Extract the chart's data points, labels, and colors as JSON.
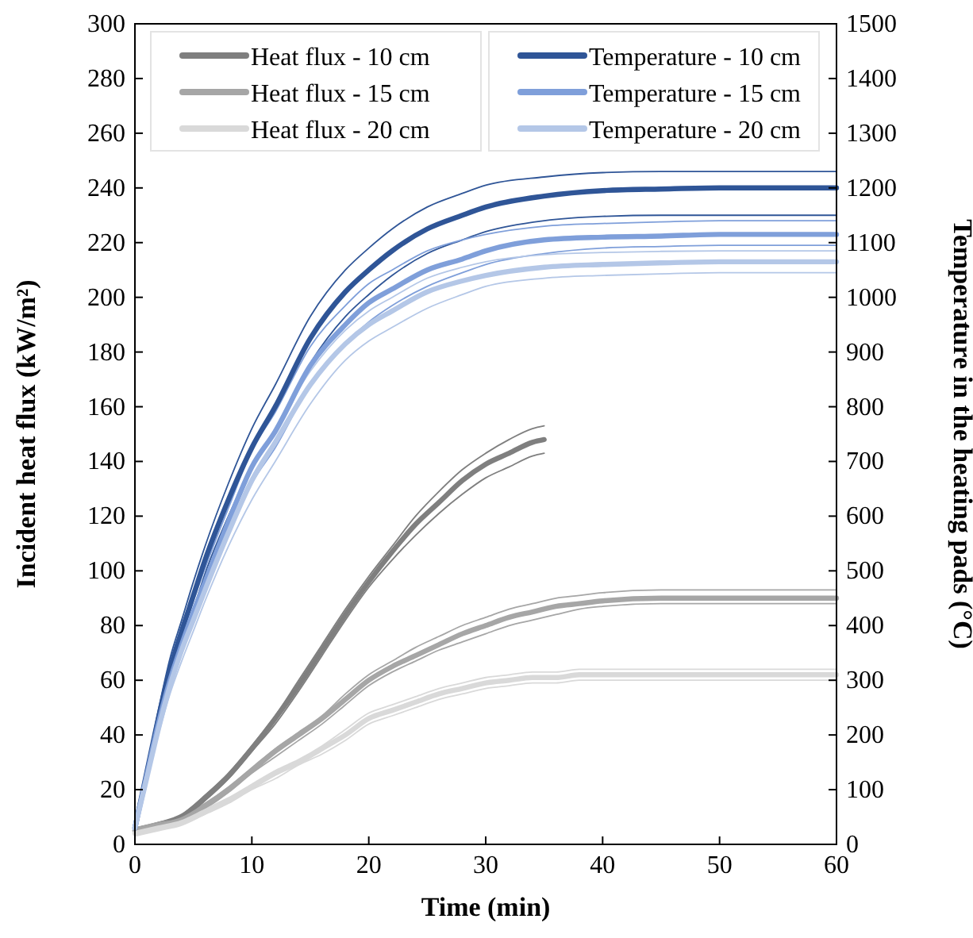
{
  "chart_data": {
    "type": "line",
    "xlabel": "Time (min)",
    "ylabel": "Incident heat flux (kW/m²)",
    "y2label": "Temperature in the heating pads (°C)",
    "xlim": [
      0,
      60
    ],
    "xticks": [
      0,
      10,
      20,
      30,
      40,
      50,
      60
    ],
    "ylim": [
      0,
      300
    ],
    "yticks": [
      0,
      20,
      40,
      60,
      80,
      100,
      120,
      140,
      160,
      180,
      200,
      220,
      240,
      260,
      280,
      300
    ],
    "y2lim": [
      0,
      1500
    ],
    "y2ticks": [
      0,
      100,
      200,
      300,
      400,
      500,
      600,
      700,
      800,
      900,
      1000,
      1100,
      1200,
      1300,
      1400,
      1500
    ],
    "grid": false,
    "legend": "top",
    "marker": "none",
    "line_style": "solid",
    "series": [
      {
        "name": "Heat flux - 10 cm",
        "color": "#7f7f7f",
        "x": [
          0,
          2,
          4,
          6,
          8,
          10,
          12,
          14,
          16,
          18,
          20,
          22,
          24,
          26,
          28,
          30,
          32,
          34,
          35
        ],
        "values": [
          5,
          7,
          10,
          17,
          25,
          35,
          46,
          58,
          71,
          84,
          96,
          107,
          117,
          125,
          133,
          139,
          143,
          147,
          148
        ]
      },
      {
        "color": "#7f7f7f",
        "x": [
          0,
          2,
          4,
          6,
          8,
          10,
          12,
          14,
          16,
          18,
          20,
          22,
          24,
          26,
          28,
          30,
          32,
          34,
          35
        ],
        "values": [
          4,
          6,
          9,
          16,
          24,
          34,
          44,
          56,
          69,
          82,
          94,
          104,
          113,
          121,
          128,
          134,
          138,
          142,
          143
        ]
      },
      {
        "color": "#7f7f7f",
        "x": [
          0,
          2,
          4,
          6,
          8,
          10,
          12,
          14,
          16,
          18,
          20,
          22,
          24,
          26,
          28,
          30,
          32,
          34,
          35
        ],
        "values": [
          6,
          8,
          11,
          18,
          26,
          36,
          47,
          60,
          73,
          86,
          98,
          109,
          120,
          129,
          137,
          143,
          148,
          152,
          153
        ]
      },
      {
        "name": "Heat flux - 15 cm",
        "color": "#a6a6a6",
        "x": [
          0,
          2,
          4,
          6,
          8,
          10,
          12,
          14,
          16,
          18,
          20,
          22,
          24,
          26,
          28,
          30,
          32,
          34,
          36,
          38,
          40,
          45,
          50,
          55,
          60
        ],
        "values": [
          5,
          7,
          9,
          14,
          20,
          27,
          34,
          40,
          46,
          53,
          60,
          65,
          69,
          73,
          77,
          80,
          83,
          85,
          87,
          88,
          89,
          90,
          90,
          90,
          90
        ]
      },
      {
        "color": "#a6a6a6",
        "x": [
          0,
          2,
          4,
          6,
          8,
          10,
          12,
          14,
          16,
          18,
          20,
          22,
          24,
          26,
          28,
          30,
          32,
          34,
          36,
          38,
          40,
          45,
          50,
          55,
          60
        ],
        "values": [
          4,
          6,
          8,
          13,
          19,
          26,
          32,
          38,
          44,
          51,
          58,
          63,
          67,
          71,
          74,
          77,
          80,
          82,
          84,
          86,
          87,
          88,
          88,
          88,
          88
        ]
      },
      {
        "color": "#a6a6a6",
        "x": [
          0,
          2,
          4,
          6,
          8,
          10,
          12,
          14,
          16,
          18,
          20,
          22,
          24,
          26,
          28,
          30,
          32,
          34,
          36,
          38,
          40,
          45,
          50,
          55,
          60
        ],
        "values": [
          6,
          8,
          10,
          15,
          21,
          28,
          35,
          41,
          47,
          55,
          62,
          67,
          72,
          76,
          80,
          83,
          86,
          88,
          90,
          91,
          92,
          93,
          93,
          93,
          93
        ]
      },
      {
        "name": "Heat flux - 20 cm",
        "color": "#d9d9d9",
        "x": [
          0,
          2,
          4,
          6,
          8,
          10,
          12,
          14,
          16,
          18,
          20,
          22,
          24,
          26,
          28,
          30,
          32,
          34,
          36,
          38,
          40,
          45,
          50,
          55,
          60
        ],
        "values": [
          4,
          6,
          8,
          12,
          16,
          21,
          26,
          30,
          35,
          40,
          46,
          49,
          52,
          55,
          57,
          59,
          60,
          61,
          61,
          62,
          62,
          62,
          62,
          62,
          62
        ]
      },
      {
        "color": "#d9d9d9",
        "x": [
          0,
          2,
          4,
          6,
          8,
          10,
          12,
          14,
          16,
          18,
          20,
          22,
          24,
          26,
          28,
          30,
          32,
          34,
          36,
          38,
          40,
          45,
          50,
          55,
          60
        ],
        "values": [
          3,
          5,
          7,
          11,
          15,
          20,
          24,
          29,
          33,
          38,
          44,
          47,
          50,
          53,
          55,
          57,
          58,
          59,
          59,
          60,
          60,
          60,
          60,
          60,
          60
        ]
      },
      {
        "color": "#d9d9d9",
        "x": [
          0,
          2,
          4,
          6,
          8,
          10,
          12,
          14,
          16,
          18,
          20,
          22,
          24,
          26,
          28,
          30,
          32,
          34,
          36,
          38,
          40,
          45,
          50,
          55,
          60
        ],
        "values": [
          5,
          7,
          9,
          13,
          17,
          22,
          27,
          31,
          36,
          42,
          48,
          51,
          54,
          57,
          59,
          61,
          62,
          63,
          63,
          64,
          64,
          64,
          64,
          64,
          64
        ]
      },
      {
        "name": "Temperature - 10 cm",
        "color": "#2f5597",
        "axis": "y2",
        "x": [
          0,
          1,
          2,
          3,
          4,
          5,
          6,
          8,
          10,
          12,
          15,
          18,
          20,
          22,
          25,
          28,
          30,
          35,
          40,
          45,
          50,
          55,
          60
        ],
        "values": [
          30,
          130,
          230,
          320,
          390,
          455,
          520,
          630,
          725,
          800,
          925,
          1010,
          1050,
          1085,
          1125,
          1150,
          1165,
          1185,
          1195,
          1198,
          1200,
          1200,
          1200
        ]
      },
      {
        "color": "#2f5597",
        "axis": "y2",
        "x": [
          0,
          1,
          2,
          3,
          4,
          5,
          6,
          8,
          10,
          12,
          15,
          18,
          20,
          22,
          25,
          28,
          30,
          35,
          40,
          45,
          50,
          55,
          60
        ],
        "values": [
          30,
          125,
          220,
          305,
          370,
          430,
          495,
          600,
          690,
          760,
          880,
          965,
          1005,
          1040,
          1080,
          1105,
          1120,
          1140,
          1148,
          1150,
          1150,
          1150,
          1150
        ]
      },
      {
        "color": "#2f5597",
        "axis": "y2",
        "x": [
          0,
          1,
          2,
          3,
          4,
          5,
          6,
          8,
          10,
          12,
          15,
          18,
          20,
          22,
          25,
          28,
          30,
          35,
          40,
          45,
          50,
          55,
          60
        ],
        "values": [
          30,
          140,
          245,
          340,
          410,
          480,
          545,
          660,
          760,
          840,
          965,
          1050,
          1090,
          1125,
          1165,
          1190,
          1205,
          1220,
          1228,
          1230,
          1230,
          1230,
          1230
        ]
      },
      {
        "name": "Temperature - 15 cm",
        "color": "#7f9fda",
        "axis": "y2",
        "x": [
          0,
          1,
          2,
          3,
          4,
          5,
          6,
          8,
          10,
          12,
          15,
          18,
          20,
          22,
          25,
          28,
          30,
          35,
          40,
          45,
          50,
          55,
          60
        ],
        "values": [
          30,
          125,
          220,
          300,
          365,
          425,
          480,
          590,
          690,
          755,
          875,
          950,
          990,
          1015,
          1050,
          1070,
          1085,
          1105,
          1110,
          1112,
          1115,
          1115,
          1115
        ]
      },
      {
        "color": "#7f9fda",
        "axis": "y2",
        "x": [
          0,
          1,
          2,
          3,
          4,
          5,
          6,
          8,
          10,
          12,
          15,
          18,
          20,
          22,
          25,
          28,
          30,
          35,
          40,
          45,
          50,
          55,
          60
        ],
        "values": [
          30,
          120,
          210,
          290,
          350,
          410,
          460,
          565,
          660,
          725,
          840,
          915,
          955,
          985,
          1020,
          1045,
          1060,
          1080,
          1090,
          1093,
          1095,
          1095,
          1095
        ]
      },
      {
        "color": "#7f9fda",
        "axis": "y2",
        "x": [
          0,
          1,
          2,
          3,
          4,
          5,
          6,
          8,
          10,
          12,
          15,
          18,
          20,
          22,
          25,
          28,
          30,
          35,
          40,
          45,
          50,
          55,
          60
        ],
        "values": [
          30,
          130,
          230,
          315,
          380,
          445,
          505,
          615,
          720,
          790,
          910,
          985,
          1025,
          1050,
          1085,
          1105,
          1115,
          1130,
          1135,
          1138,
          1140,
          1140,
          1140
        ]
      },
      {
        "name": "Temperature - 20 cm",
        "color": "#b4c7e7",
        "axis": "y2",
        "x": [
          0,
          1,
          2,
          3,
          4,
          5,
          6,
          8,
          10,
          12,
          15,
          18,
          20,
          22,
          25,
          28,
          30,
          35,
          40,
          45,
          50,
          55,
          60
        ],
        "values": [
          30,
          120,
          210,
          290,
          355,
          410,
          465,
          570,
          665,
          735,
          840,
          915,
          950,
          975,
          1010,
          1030,
          1040,
          1055,
          1060,
          1063,
          1065,
          1065,
          1065
        ]
      },
      {
        "color": "#b4c7e7",
        "axis": "y2",
        "x": [
          0,
          1,
          2,
          3,
          4,
          5,
          6,
          8,
          10,
          12,
          15,
          18,
          20,
          22,
          25,
          28,
          30,
          35,
          40,
          45,
          50,
          55,
          60
        ],
        "values": [
          30,
          115,
          200,
          275,
          335,
          390,
          445,
          545,
          630,
          700,
          805,
          885,
          920,
          945,
          980,
          1005,
          1020,
          1035,
          1040,
          1043,
          1045,
          1045,
          1045
        ]
      },
      {
        "color": "#b4c7e7",
        "axis": "y2",
        "x": [
          0,
          1,
          2,
          3,
          4,
          5,
          6,
          8,
          10,
          12,
          15,
          18,
          20,
          22,
          25,
          28,
          30,
          35,
          40,
          45,
          50,
          55,
          60
        ],
        "values": [
          30,
          125,
          220,
          300,
          370,
          430,
          485,
          595,
          690,
          760,
          865,
          940,
          975,
          1000,
          1035,
          1055,
          1065,
          1078,
          1082,
          1084,
          1085,
          1085,
          1085
        ]
      }
    ]
  }
}
